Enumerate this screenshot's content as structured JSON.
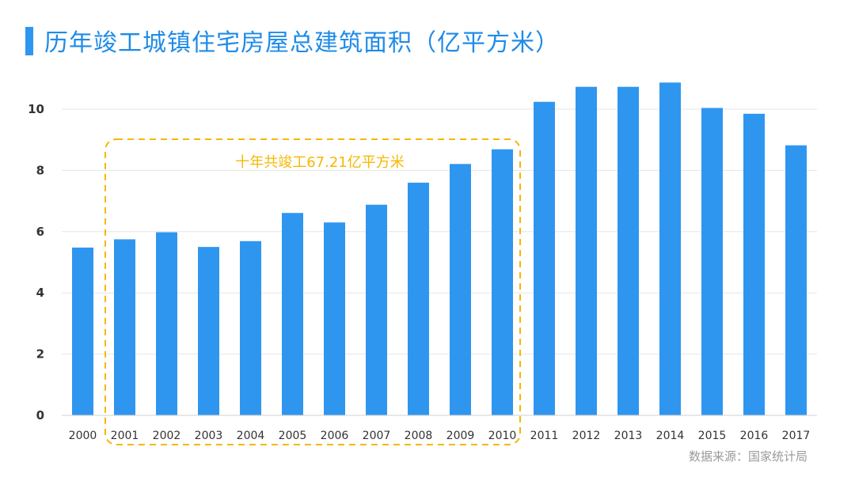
{
  "header": {
    "title": "历年竣工城镇住宅房屋总建筑面积（亿平方米）"
  },
  "footer": {
    "source": "数据来源：国家统计局"
  },
  "annotation": {
    "text": "十年共竣工67.21亿平方米",
    "color": "#f5b800",
    "range": [
      "2001",
      "2010"
    ]
  },
  "colors": {
    "bar": "#2f96f0",
    "title": "#1f8be8",
    "grid": "#e6e6e6",
    "tick": "#333333"
  },
  "chart_data": {
    "type": "bar",
    "title": "历年竣工城镇住宅房屋总建筑面积（亿平方米）",
    "xlabel": "",
    "ylabel": "",
    "categories": [
      "2000",
      "2001",
      "2002",
      "2003",
      "2004",
      "2005",
      "2006",
      "2007",
      "2008",
      "2009",
      "2010",
      "2011",
      "2012",
      "2013",
      "2014",
      "2015",
      "2016",
      "2017"
    ],
    "values": [
      5.48,
      5.75,
      5.98,
      5.5,
      5.69,
      6.61,
      6.3,
      6.88,
      7.6,
      8.21,
      8.69,
      10.24,
      10.73,
      10.73,
      10.87,
      10.04,
      9.85,
      8.82
    ],
    "ylim": [
      0,
      11
    ],
    "yticks": [
      0,
      2,
      4,
      6,
      8,
      10
    ],
    "grid": true,
    "legend": "none"
  }
}
